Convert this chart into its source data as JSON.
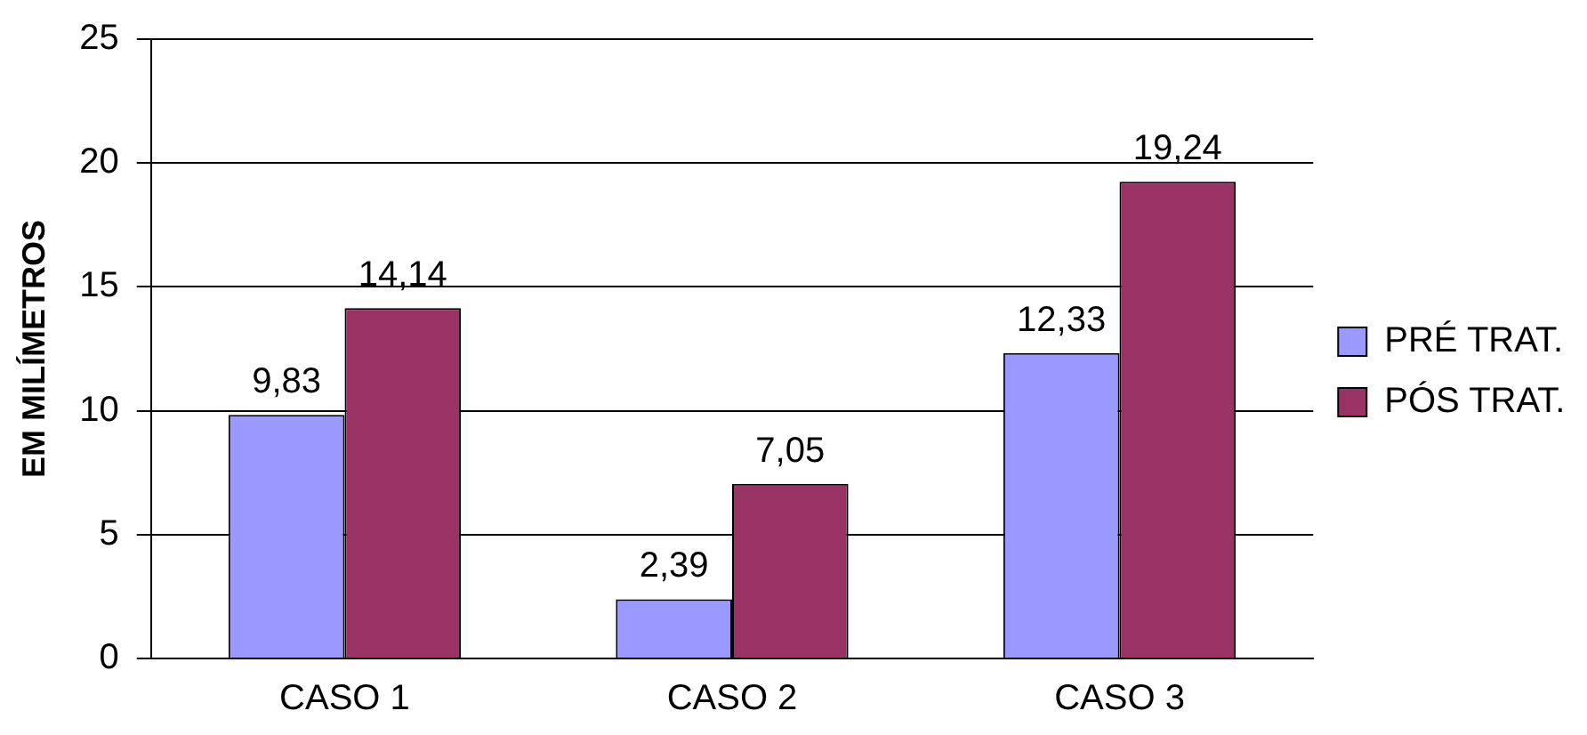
{
  "chart_data": {
    "type": "bar",
    "ylabel": "EM MILÍMETROS",
    "categories": [
      "CASO 1",
      "CASO 2",
      "CASO 3"
    ],
    "series": [
      {
        "name": "PRÉ TRAT.",
        "color": "#9999ff",
        "values": [
          9.83,
          2.39,
          12.33
        ],
        "value_labels": [
          "9,83",
          "2,39",
          "12,33"
        ]
      },
      {
        "name": "PÓS TRAT.",
        "color": "#993366",
        "values": [
          14.14,
          7.05,
          19.24
        ],
        "value_labels": [
          "14,14",
          "7,05",
          "19,24"
        ]
      }
    ],
    "ylim": [
      0,
      25
    ],
    "yticks": [
      0,
      5,
      10,
      15,
      20,
      25
    ],
    "grid": "y",
    "legend": "right"
  }
}
